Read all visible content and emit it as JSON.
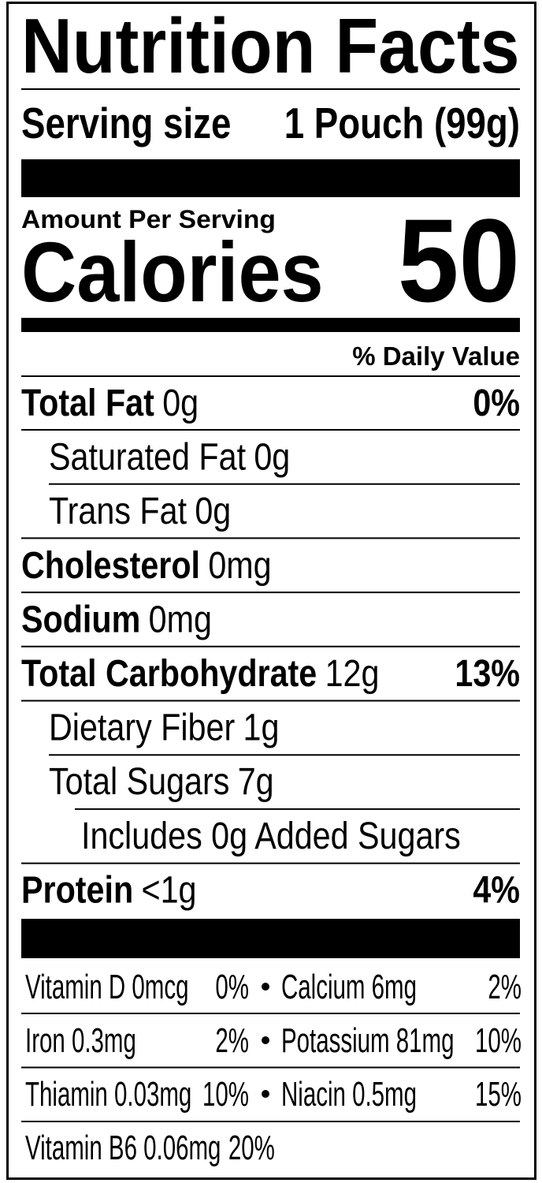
{
  "title": "Nutrition Facts",
  "serving": {
    "label": "Serving size",
    "value": "1 Pouch (99g)"
  },
  "amount_per_serving": "Amount Per Serving",
  "calories": {
    "label": "Calories",
    "value": 50
  },
  "daily_value_header": "% Daily Value",
  "nutrients": [
    {
      "name": "Total Fat",
      "amount": "0g",
      "dv": "0%"
    },
    {
      "name": "Saturated Fat",
      "amount": "0g"
    },
    {
      "name": "Trans Fat",
      "amount": "0g"
    },
    {
      "name": "Cholesterol",
      "amount": "0mg"
    },
    {
      "name": "Sodium",
      "amount": "0mg"
    },
    {
      "name": "Total Carbohydrate",
      "amount": "12g",
      "dv": "13%"
    },
    {
      "name": "Dietary Fiber",
      "amount": "1g"
    },
    {
      "name": "Total Sugars",
      "amount": "7g"
    },
    {
      "name": "Includes 0g Added Sugars"
    },
    {
      "name": "Protein",
      "amount": "<1g",
      "dv": "4%"
    }
  ],
  "micronutrients": [
    [
      {
        "name": "Vitamin D 0mcg",
        "dv": "0%"
      },
      {
        "name": "Calcium 6mg",
        "dv": "2%"
      }
    ],
    [
      {
        "name": "Iron 0.3mg",
        "dv": "2%"
      },
      {
        "name": "Potassium 81mg",
        "dv": "10%"
      }
    ],
    [
      {
        "name": "Thiamin 0.03mg",
        "dv": "10%"
      },
      {
        "name": "Niacin 0.5mg",
        "dv": "15%"
      }
    ],
    [
      {
        "name": "Vitamin B6 0.06mg",
        "dv": "20%"
      }
    ]
  ]
}
